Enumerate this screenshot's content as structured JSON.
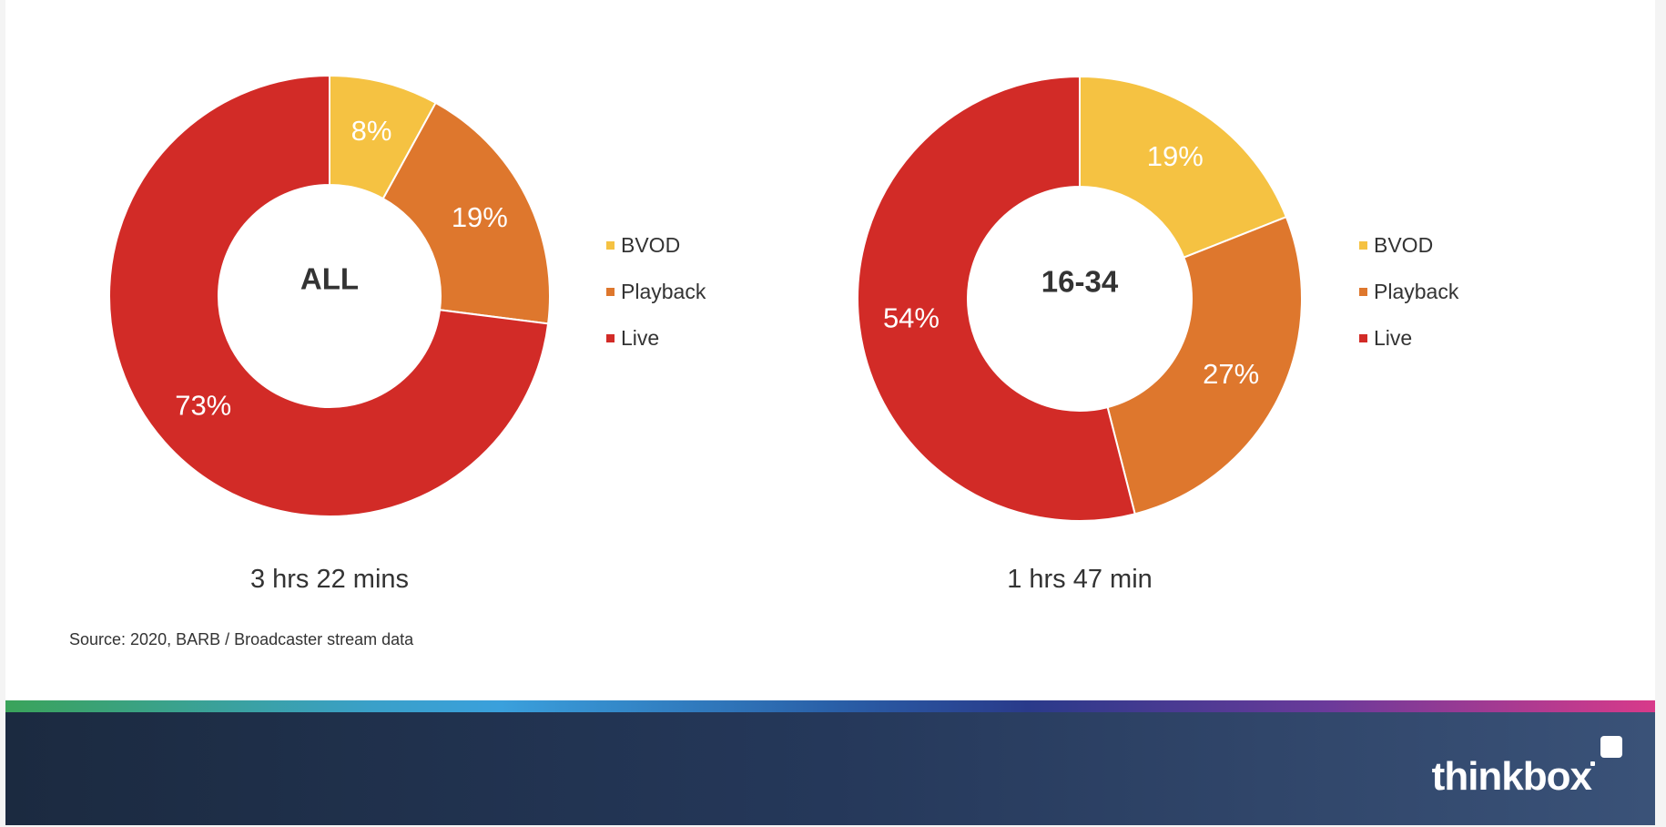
{
  "chart_data": [
    {
      "type": "pie",
      "center_label": "ALL",
      "categories": [
        "BVOD",
        "Playback",
        "Live"
      ],
      "values": [
        8,
        19,
        73
      ],
      "value_labels": [
        "8%",
        "19%",
        "73%"
      ],
      "colors": [
        "#f5c242",
        "#de772d",
        "#d22b27"
      ],
      "legend": [
        "BVOD",
        "Playback",
        "Live"
      ],
      "legend_placement": "right",
      "duration": "3 hrs 22 mins"
    },
    {
      "type": "pie",
      "center_label": "16-34",
      "categories": [
        "BVOD",
        "Playback",
        "Live"
      ],
      "values": [
        19,
        27,
        54
      ],
      "value_labels": [
        "19%",
        "27%",
        "54%"
      ],
      "colors": [
        "#f5c242",
        "#de772d",
        "#d22b27"
      ],
      "legend": [
        "BVOD",
        "Playback",
        "Live"
      ],
      "legend_placement": "right",
      "duration": "1 hrs 47 min"
    }
  ],
  "source": "Source: 2020, BARB / Broadcaster stream data",
  "footer": {
    "logo_text": "thinkbox",
    "background_color": "#1f2f48"
  }
}
